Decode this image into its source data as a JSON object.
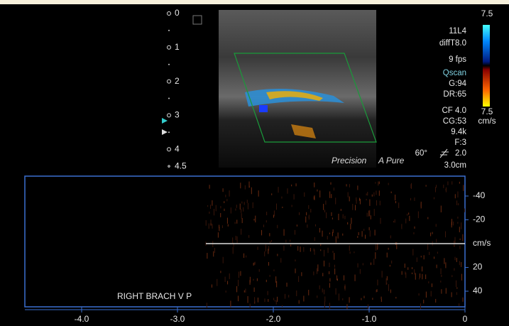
{
  "depth_scale": {
    "ticks": [
      0,
      1,
      2,
      3,
      4,
      4.5
    ]
  },
  "settings": {
    "probe": "11L4",
    "preset": "diffT8.0",
    "frame_rate": "9 fps",
    "mode": "Qscan",
    "gain": "G:94",
    "dynamic_range": "DR:65",
    "color_frequency": "CF 4.0",
    "color_gain": "CG:53",
    "prf": "9.4k",
    "filter": "F:3",
    "angle": "60°",
    "steer": "2.0",
    "depth": "3.0cm"
  },
  "color_bar": {
    "top": "7.5",
    "bottom": "7.5",
    "unit": "cm/s"
  },
  "logos": [
    "Precision",
    "A Pure"
  ],
  "doppler": {
    "velocity_ticks": [
      -40,
      -20,
      20,
      40
    ],
    "velocity_unit": "cm/s",
    "time_ticks": [
      {
        "value": -4,
        "label": "-4.0"
      },
      {
        "value": -3,
        "label": "-3.0"
      },
      {
        "value": -2,
        "label": "-2.0"
      },
      {
        "value": -1,
        "label": "-1.0"
      },
      0
    ],
    "label": "RIGHT BRACH  V P"
  }
}
